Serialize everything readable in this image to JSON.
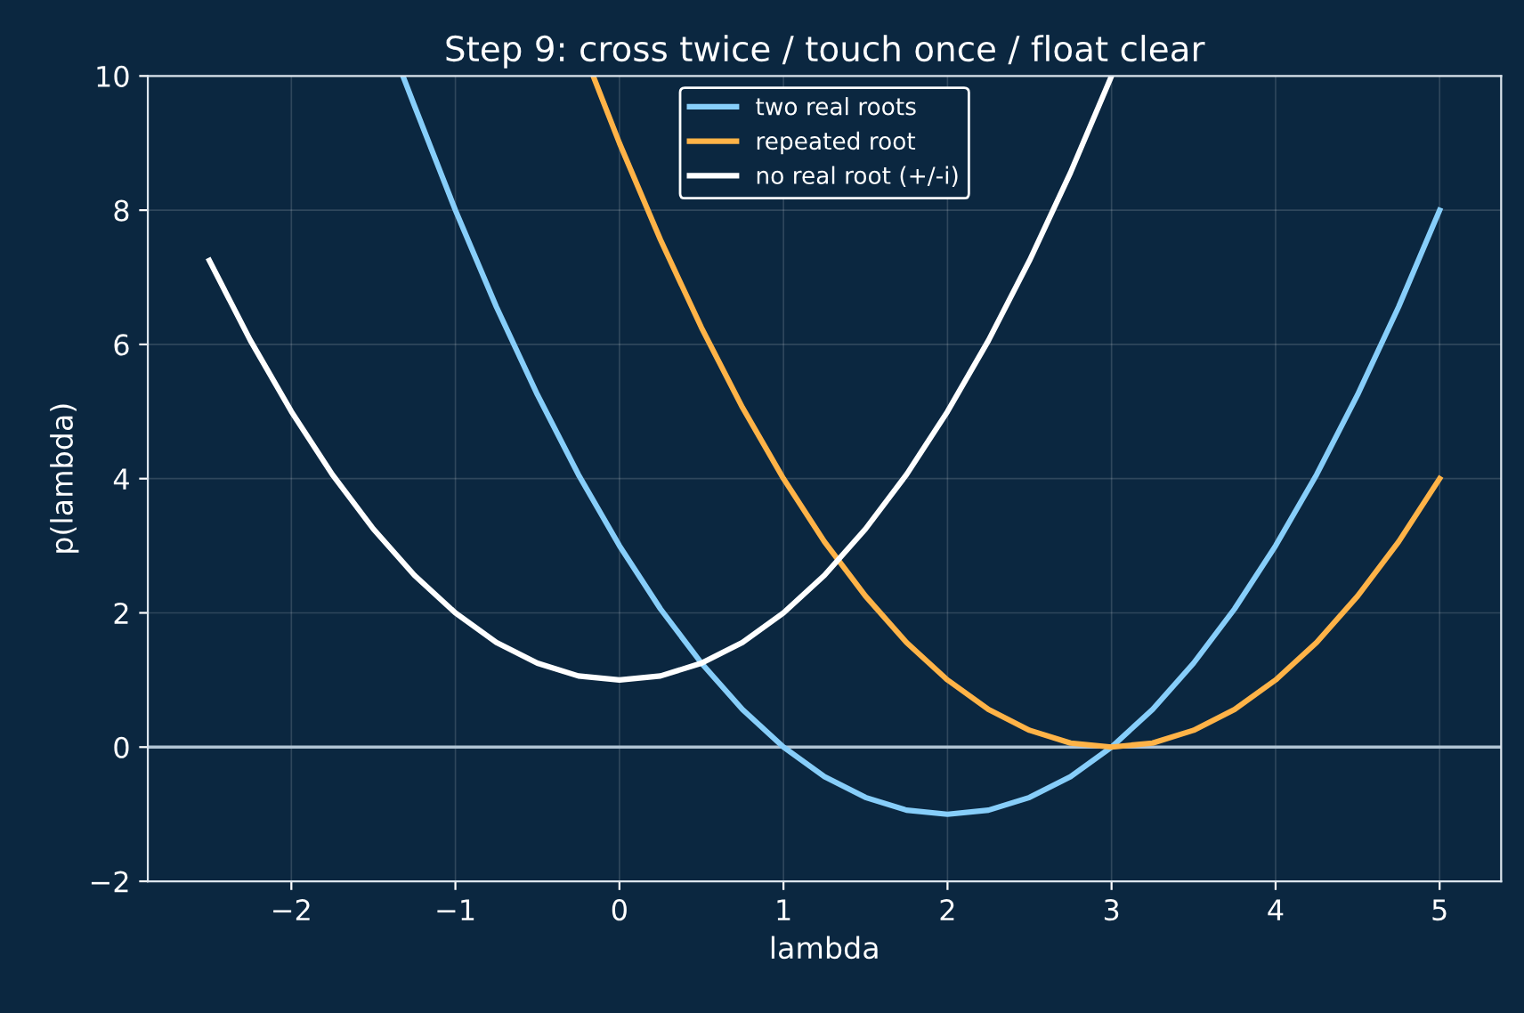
{
  "chart_data": {
    "type": "line",
    "title": "Step 9: cross twice / touch once / float clear",
    "xlabel": "lambda",
    "ylabel": "p(lambda)",
    "series": [
      {
        "name": "two real roots",
        "color": "#87cefa",
        "x": [
          -1.32,
          -1.25,
          -1,
          -0.75,
          -0.5,
          -0.25,
          0,
          0.25,
          0.5,
          0.75,
          1,
          1.25,
          1.5,
          1.75,
          2,
          2.25,
          2.5,
          2.75,
          3,
          3.25,
          3.5,
          3.75,
          4,
          4.25,
          4.5,
          4.75,
          5
        ],
        "values": [
          10,
          9.56,
          8,
          6.56,
          5.25,
          4.06,
          3,
          2.06,
          1.25,
          0.56,
          0,
          -0.44,
          -0.75,
          -0.94,
          -1,
          -0.94,
          -0.75,
          -0.44,
          0,
          0.56,
          1.25,
          2.06,
          3,
          4.06,
          5.25,
          6.56,
          8
        ]
      },
      {
        "name": "repeated root",
        "color": "#ffb347",
        "x": [
          -0.16,
          0,
          0.25,
          0.5,
          0.75,
          1,
          1.25,
          1.5,
          1.75,
          2,
          2.25,
          2.5,
          2.75,
          3,
          3.25,
          3.5,
          3.75,
          4,
          4.25,
          4.5,
          4.75,
          5
        ],
        "values": [
          10,
          9,
          7.56,
          6.25,
          5.06,
          4,
          3.06,
          2.25,
          1.56,
          1,
          0.56,
          0.25,
          0.06,
          0,
          0.06,
          0.25,
          0.56,
          1,
          1.56,
          2.25,
          3.06,
          4
        ]
      },
      {
        "name": "no real root (+/-i)",
        "color": "#ffffff",
        "x": [
          -2.5,
          -2.25,
          -2,
          -1.75,
          -1.5,
          -1.25,
          -1,
          -0.75,
          -0.5,
          -0.25,
          0,
          0.25,
          0.5,
          0.75,
          1,
          1.25,
          1.5,
          1.75,
          2,
          2.25,
          2.5,
          2.75,
          3
        ],
        "values": [
          7.25,
          6.06,
          5,
          4.06,
          3.25,
          2.56,
          2,
          1.56,
          1.25,
          1.06,
          1,
          1.06,
          1.25,
          1.56,
          2,
          2.56,
          3.25,
          4.06,
          5,
          6.06,
          7.25,
          8.56,
          10
        ]
      }
    ],
    "xlim": [
      -2.875,
      5.375
    ],
    "xticks": [
      -2,
      -1,
      0,
      1,
      2,
      3,
      4,
      5
    ],
    "ylim": [
      -2,
      10
    ],
    "yticks": [
      -2,
      0,
      2,
      4,
      6,
      8,
      10
    ],
    "ref_lines": [
      {
        "axis": "y",
        "value": 0,
        "color": "#b0c4d4"
      }
    ],
    "grid": true,
    "legend": "top center"
  }
}
